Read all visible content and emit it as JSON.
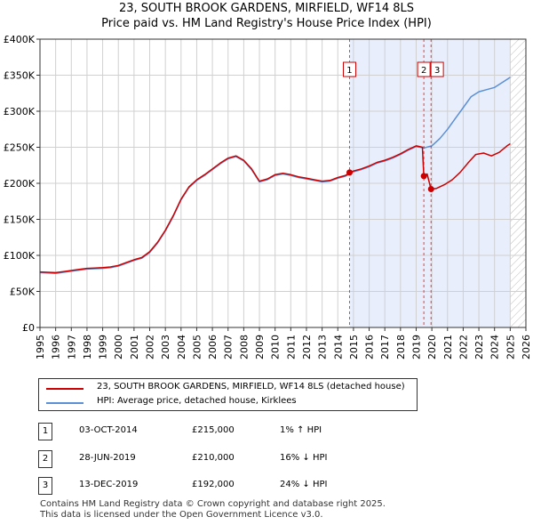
{
  "chart_data": {
    "type": "line",
    "title": "23, SOUTH BROOK GARDENS, MIRFIELD, WF14 8LS",
    "subtitle": "Price paid vs. HM Land Registry's House Price Index (HPI)",
    "xlim": [
      1995,
      2026
    ],
    "ylim": [
      0,
      400000
    ],
    "x_ticks": [
      "1995",
      "1996",
      "1997",
      "1998",
      "1999",
      "2000",
      "2001",
      "2002",
      "2003",
      "2004",
      "2005",
      "2006",
      "2007",
      "2008",
      "2009",
      "2010",
      "2011",
      "2012",
      "2013",
      "2014",
      "2015",
      "2016",
      "2017",
      "2018",
      "2019",
      "2020",
      "2021",
      "2022",
      "2023",
      "2024",
      "2025",
      "2026"
    ],
    "y_ticks": [
      {
        "value": 0,
        "label": "£0"
      },
      {
        "value": 50000,
        "label": "£50K"
      },
      {
        "value": 100000,
        "label": "£100K"
      },
      {
        "value": 150000,
        "label": "£150K"
      },
      {
        "value": 200000,
        "label": "£200K"
      },
      {
        "value": 250000,
        "label": "£250K"
      },
      {
        "value": 300000,
        "label": "£300K"
      },
      {
        "value": 350000,
        "label": "£350K"
      },
      {
        "value": 400000,
        "label": "£400K"
      }
    ],
    "colors": {
      "property": "#cc0000",
      "hpi": "#5b8fd6",
      "shade": "#e8eefb",
      "marker_line": "#cc0000",
      "grid": "#d0d0d0"
    },
    "series": [
      {
        "name": "23, SOUTH BROOK GARDENS, MIRFIELD, WF14 8LS (detached house)",
        "color": "#cc0000",
        "points": [
          [
            1995.0,
            77000
          ],
          [
            1995.5,
            76500
          ],
          [
            1996.0,
            76000
          ],
          [
            1996.5,
            77500
          ],
          [
            1997.0,
            79000
          ],
          [
            1997.5,
            80500
          ],
          [
            1998.0,
            82000
          ],
          [
            1998.5,
            82500
          ],
          [
            1999.0,
            83000
          ],
          [
            1999.5,
            84000
          ],
          [
            2000.0,
            86000
          ],
          [
            2000.5,
            90000
          ],
          [
            2001.0,
            94000
          ],
          [
            2001.5,
            97000
          ],
          [
            2002.0,
            105000
          ],
          [
            2002.5,
            118000
          ],
          [
            2003.0,
            135000
          ],
          [
            2003.5,
            155000
          ],
          [
            2004.0,
            178000
          ],
          [
            2004.5,
            195000
          ],
          [
            2005.0,
            205000
          ],
          [
            2005.5,
            212000
          ],
          [
            2006.0,
            220000
          ],
          [
            2006.5,
            228000
          ],
          [
            2007.0,
            235000
          ],
          [
            2007.5,
            238000
          ],
          [
            2008.0,
            232000
          ],
          [
            2008.5,
            220000
          ],
          [
            2009.0,
            203000
          ],
          [
            2009.5,
            206000
          ],
          [
            2010.0,
            212000
          ],
          [
            2010.5,
            214000
          ],
          [
            2011.0,
            212000
          ],
          [
            2011.5,
            209000
          ],
          [
            2012.0,
            207000
          ],
          [
            2012.5,
            205000
          ],
          [
            2013.0,
            203000
          ],
          [
            2013.5,
            204000
          ],
          [
            2014.0,
            208000
          ],
          [
            2014.5,
            211000
          ],
          [
            2014.75,
            215000
          ],
          [
            2015.0,
            217000
          ],
          [
            2015.5,
            220000
          ],
          [
            2016.0,
            224000
          ],
          [
            2016.5,
            229000
          ],
          [
            2017.0,
            232000
          ],
          [
            2017.5,
            236000
          ],
          [
            2018.0,
            241000
          ],
          [
            2018.5,
            247000
          ],
          [
            2019.0,
            252000
          ],
          [
            2019.4,
            250000
          ],
          [
            2019.49,
            210000
          ],
          [
            2019.7,
            213000
          ],
          [
            2019.95,
            192000
          ],
          [
            2020.3,
            193000
          ],
          [
            2020.8,
            198000
          ],
          [
            2021.3,
            205000
          ],
          [
            2021.8,
            215000
          ],
          [
            2022.3,
            228000
          ],
          [
            2022.8,
            240000
          ],
          [
            2023.3,
            242000
          ],
          [
            2023.8,
            238000
          ],
          [
            2024.3,
            243000
          ],
          [
            2024.8,
            252000
          ],
          [
            2025.0,
            255000
          ]
        ]
      },
      {
        "name": "HPI: Average price, detached house, Kirklees",
        "color": "#5b8fd6",
        "points": [
          [
            1995.0,
            76000
          ],
          [
            1995.5,
            75500
          ],
          [
            1996.0,
            75000
          ],
          [
            1996.5,
            76500
          ],
          [
            1997.0,
            78000
          ],
          [
            1997.5,
            79500
          ],
          [
            1998.0,
            81000
          ],
          [
            1998.5,
            81500
          ],
          [
            1999.0,
            82000
          ],
          [
            1999.5,
            83000
          ],
          [
            2000.0,
            85000
          ],
          [
            2000.5,
            89000
          ],
          [
            2001.0,
            93000
          ],
          [
            2001.5,
            96000
          ],
          [
            2002.0,
            104000
          ],
          [
            2002.5,
            117000
          ],
          [
            2003.0,
            134000
          ],
          [
            2003.5,
            154000
          ],
          [
            2004.0,
            177000
          ],
          [
            2004.5,
            194000
          ],
          [
            2005.0,
            204000
          ],
          [
            2005.5,
            211000
          ],
          [
            2006.0,
            219000
          ],
          [
            2006.5,
            227000
          ],
          [
            2007.0,
            234000
          ],
          [
            2007.5,
            237000
          ],
          [
            2008.0,
            231000
          ],
          [
            2008.5,
            219000
          ],
          [
            2009.0,
            202000
          ],
          [
            2009.5,
            205000
          ],
          [
            2010.0,
            211000
          ],
          [
            2010.5,
            213000
          ],
          [
            2011.0,
            211000
          ],
          [
            2011.5,
            208000
          ],
          [
            2012.0,
            206000
          ],
          [
            2012.5,
            204000
          ],
          [
            2013.0,
            202000
          ],
          [
            2013.5,
            203000
          ],
          [
            2014.0,
            207000
          ],
          [
            2014.5,
            210000
          ],
          [
            2014.75,
            213000
          ],
          [
            2015.0,
            216000
          ],
          [
            2015.5,
            219000
          ],
          [
            2016.0,
            223000
          ],
          [
            2016.5,
            228000
          ],
          [
            2017.0,
            231000
          ],
          [
            2017.5,
            235000
          ],
          [
            2018.0,
            240000
          ],
          [
            2018.5,
            246000
          ],
          [
            2019.0,
            251000
          ],
          [
            2019.5,
            249000
          ],
          [
            2020.0,
            252000
          ],
          [
            2020.5,
            262000
          ],
          [
            2021.0,
            275000
          ],
          [
            2021.5,
            290000
          ],
          [
            2022.0,
            305000
          ],
          [
            2022.5,
            320000
          ],
          [
            2023.0,
            327000
          ],
          [
            2023.5,
            330000
          ],
          [
            2024.0,
            333000
          ],
          [
            2024.5,
            340000
          ],
          [
            2025.0,
            347000
          ]
        ]
      }
    ],
    "sales": [
      {
        "id": "1",
        "x": 2014.75,
        "price": 215000
      },
      {
        "id": "2",
        "x": 2019.49,
        "price": 210000
      },
      {
        "id": "3",
        "x": 2019.95,
        "price": 192000
      }
    ],
    "shaded_ranges": [
      [
        2014.75,
        2025.0
      ]
    ],
    "hatched_after": 2025.0
  },
  "legend": {
    "property_label": "23, SOUTH BROOK GARDENS, MIRFIELD, WF14 8LS (detached house)",
    "hpi_label": "HPI: Average price, detached house, Kirklees"
  },
  "sales_table": [
    {
      "num": "1",
      "date": "03-OCT-2014",
      "price": "£215,000",
      "hpi": "1% ↑ HPI"
    },
    {
      "num": "2",
      "date": "28-JUN-2019",
      "price": "£210,000",
      "hpi": "16% ↓ HPI"
    },
    {
      "num": "3",
      "date": "13-DEC-2019",
      "price": "£192,000",
      "hpi": "24% ↓ HPI"
    }
  ],
  "footer": {
    "line1": "Contains HM Land Registry data © Crown copyright and database right 2025.",
    "line2": "This data is licensed under the Open Government Licence v3.0."
  }
}
